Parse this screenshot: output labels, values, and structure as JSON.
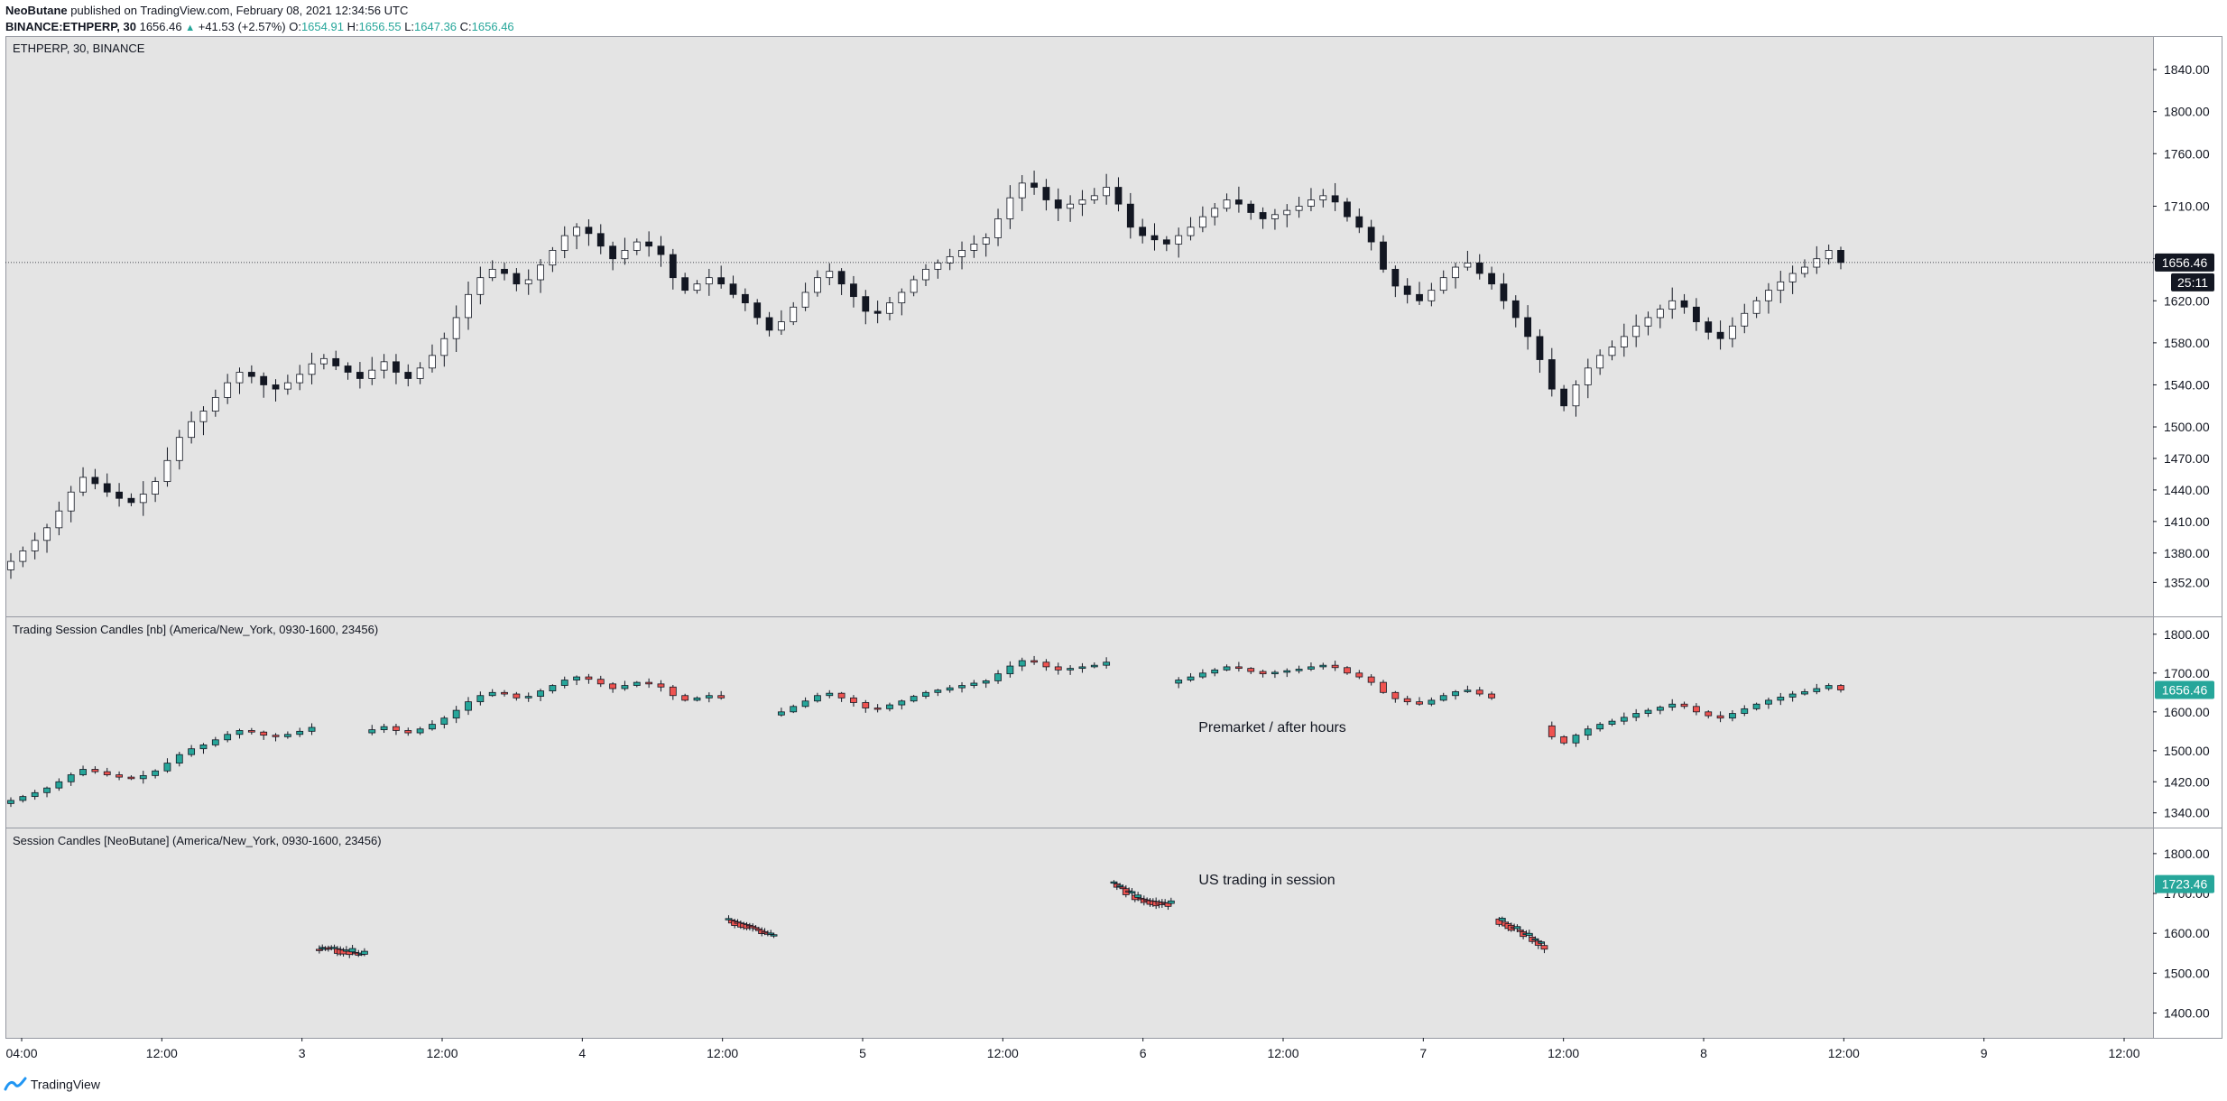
{
  "header": {
    "author": "NeoButane",
    "published_text": "published on TradingView.com, February 08, 2021 12:34:56 UTC",
    "symbol": "BINANCE:ETHPERP, 30",
    "last": "1656.46",
    "change": "+41.53 (+2.57%)",
    "open_label": "O:",
    "open": "1654.91",
    "high_label": "H:",
    "high": "1656.55",
    "low_label": "L:",
    "low": "1647.36",
    "close_label": "C:",
    "close": "1656.46"
  },
  "footer": {
    "brand": "TradingView"
  },
  "colors": {
    "up": "#26a69a",
    "down": "#ef5350",
    "bg": "#e4e4e4",
    "accent": "#2196f3",
    "dark_label": "#131722"
  },
  "chart_data": [
    {
      "type": "candlestick",
      "title": "ETHPERP, 30, BINANCE",
      "ylim": [
        1330,
        1865
      ],
      "y_ticks": [
        "1840.00",
        "1800.00",
        "1760.00",
        "1710.00",
        "1660.00",
        "1620.00",
        "1580.00",
        "1540.00",
        "1500.00",
        "1470.00",
        "1440.00",
        "1410.00",
        "1380.00",
        "1352.00"
      ],
      "last_price": "1656.46",
      "countdown": "25:11",
      "series": [
        {
          "close": [
            1372,
            1382,
            1392,
            1404,
            1420,
            1438,
            1452,
            1446,
            1438,
            1432,
            1428,
            1436,
            1448,
            1468,
            1490,
            1505,
            1515,
            1528,
            1542,
            1552,
            1548,
            1540,
            1536,
            1542,
            1550,
            1560,
            1565,
            1558,
            1552,
            1546,
            1554,
            1562,
            1552,
            1546,
            1556,
            1568,
            1584,
            1604,
            1626,
            1642,
            1650,
            1646,
            1636,
            1640,
            1654,
            1668,
            1682,
            1690,
            1684,
            1672,
            1660,
            1668,
            1676,
            1672,
            1664,
            1642,
            1630,
            1636,
            1642,
            1636,
            1626,
            1618,
            1604,
            1592,
            1600,
            1614,
            1628,
            1642,
            1648,
            1636,
            1624,
            1610,
            1608,
            1618,
            1628,
            1640,
            1650,
            1656,
            1662,
            1668,
            1674,
            1680,
            1698,
            1718,
            1732,
            1728,
            1716,
            1708,
            1712,
            1716,
            1720,
            1728,
            1712,
            1690,
            1682,
            1678,
            1674,
            1682,
            1690,
            1700,
            1708,
            1716,
            1712,
            1704,
            1698,
            1702,
            1706,
            1710,
            1716,
            1720,
            1714,
            1700,
            1690,
            1676,
            1650,
            1634,
            1626,
            1620,
            1630,
            1642,
            1652,
            1656,
            1646,
            1636,
            1620,
            1604,
            1586,
            1564,
            1536,
            1520,
            1540,
            1556,
            1568,
            1576,
            1586,
            1596,
            1604,
            1612,
            1620,
            1614,
            1600,
            1590,
            1584,
            1596,
            1608,
            1620,
            1630,
            1638,
            1646,
            1652,
            1660,
            1668,
            1656.46
          ]
        }
      ]
    },
    {
      "type": "candlestick",
      "title": "Trading Session Candles [nb] (America/New_York, 0930-1600, 23456)",
      "ylim": [
        1330,
        1825
      ],
      "y_ticks": [
        "1800.00",
        "1700.00",
        "1600.00",
        "1500.00",
        "1420.00",
        "1340.00"
      ],
      "last_price": "1656.46",
      "annotation": "Premarket / after hours"
    },
    {
      "type": "candlestick",
      "title": "Session Candles [NeoButane] (America/New_York, 0930-1600, 23456)",
      "ylim": [
        1365,
        1845
      ],
      "y_ticks": [
        "1800.00",
        "1700.00",
        "1600.00",
        "1500.00",
        "1400.00"
      ],
      "last_price": "1723.46",
      "annotation": "US trading in session"
    }
  ],
  "x_axis": {
    "ticks": [
      "04:00",
      "12:00",
      "3",
      "12:00",
      "4",
      "12:00",
      "5",
      "12:00",
      "6",
      "12:00",
      "7",
      "12:00",
      "8",
      "12:00",
      "9",
      "12:00"
    ]
  }
}
